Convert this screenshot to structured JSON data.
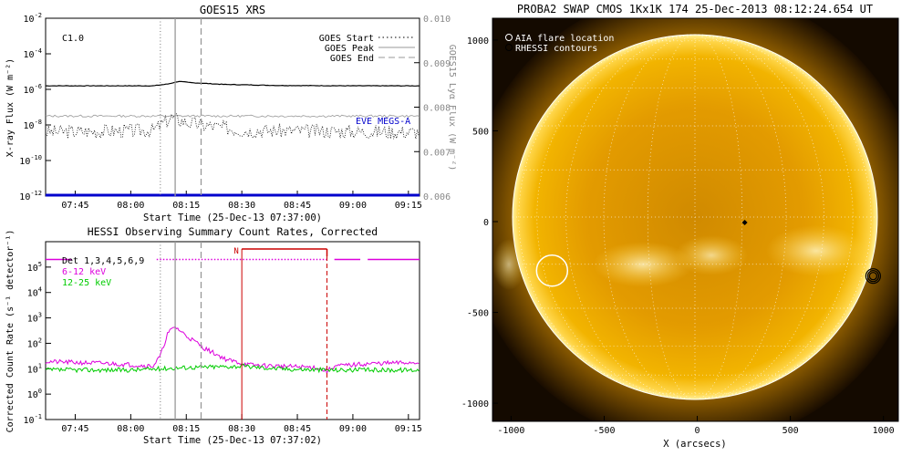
{
  "chart_data": [
    {
      "id": "goes",
      "type": "line",
      "title": "GOES15 XRS",
      "xlabel": "Start Time (25-Dec-13 07:37:00)",
      "ylabel": "X-ray Flux (W m⁻²)",
      "y2label": "GOES15 Lyα Flux (W m⁻²)",
      "x_ticks": [
        "07:45",
        "08:00",
        "08:15",
        "08:30",
        "08:45",
        "09:00",
        "09:15"
      ],
      "y_ticks_exp": [
        -2,
        -4,
        -6,
        -8,
        -10,
        -12
      ],
      "y2_ticks": [
        "0.010",
        "0.009",
        "0.008",
        "0.007",
        "0.006"
      ],
      "y_scale": "log",
      "ylim_exp": [
        -12,
        -2
      ],
      "xlim_min": [
        37,
        138
      ],
      "flare_class_label": "C1.0",
      "eve_label": "EVE MEGS-A",
      "legend": [
        {
          "label": "GOES Start",
          "style": "dotted"
        },
        {
          "label": "GOES Peak",
          "style": "solid"
        },
        {
          "label": "GOES End",
          "style": "dashed"
        }
      ],
      "event_times_min": {
        "start": 68,
        "peak": 72,
        "end": 79
      },
      "series": [
        {
          "name": "long",
          "color": "#000000",
          "base_exp": -5.8,
          "flare": [
            [
              37,
              -5.8
            ],
            [
              66,
              -5.8
            ],
            [
              70,
              -5.7
            ],
            [
              73,
              -5.55
            ],
            [
              76,
              -5.62
            ],
            [
              85,
              -5.72
            ],
            [
              100,
              -5.78
            ],
            [
              120,
              -5.8
            ],
            [
              138,
              -5.8
            ]
          ]
        },
        {
          "name": "short",
          "color": "#000000",
          "base_exp": -8.4,
          "flare": [
            [
              37,
              -8.4
            ],
            [
              66,
              -8.3
            ],
            [
              71,
              -7.6
            ],
            [
              76,
              -7.9
            ],
            [
              90,
              -8.3
            ],
            [
              138,
              -8.4
            ]
          ]
        },
        {
          "name": "lya",
          "color": "#999999",
          "base_exp": -7.5
        },
        {
          "name": "eve",
          "color": "#0000cc",
          "base_exp": -11.95
        }
      ]
    },
    {
      "id": "hessi",
      "type": "line",
      "title": "HESSI Observing Summary Count Rates, Corrected",
      "xlabel": "Start Time (25-Dec-13 07:37:02)",
      "ylabel": "Corrected Count Rate (s⁻¹ detector⁻¹)",
      "x_ticks": [
        "07:45",
        "08:00",
        "08:15",
        "08:30",
        "08:45",
        "09:00",
        "09:15"
      ],
      "y_ticks_exp": [
        5,
        4,
        3,
        2,
        1,
        0,
        -1
      ],
      "y_scale": "log",
      "ylim_exp": [
        -1,
        6
      ],
      "xlim_min": [
        37,
        138
      ],
      "legend": [
        {
          "label": "Det 1,3,4,5,6,9",
          "color": "#000000"
        },
        {
          "label": "6-12 keV",
          "color": "#dd00dd"
        },
        {
          "label": "12-25 keV",
          "color": "#00cc00"
        }
      ],
      "night_label": "N",
      "night_interval_min": [
        90,
        113
      ],
      "event_times_min": {
        "start": 68,
        "peak": 72,
        "end": 79
      },
      "series": [
        {
          "name": "6-12 keV",
          "color": "#dd00dd",
          "points": [
            [
              37,
              1.28
            ],
            [
              55,
              1.2
            ],
            [
              66,
              1.1
            ],
            [
              68,
              1.5
            ],
            [
              70,
              2.4
            ],
            [
              72,
              2.65
            ],
            [
              75,
              2.3
            ],
            [
              80,
              1.8
            ],
            [
              86,
              1.35
            ],
            [
              92,
              1.15
            ],
            [
              100,
              1.1
            ],
            [
              110,
              1.05
            ],
            [
              113,
              0.9
            ],
            [
              115,
              1.1
            ],
            [
              125,
              1.2
            ],
            [
              138,
              1.25
            ]
          ]
        },
        {
          "name": "12-25 keV",
          "color": "#00cc00",
          "points": [
            [
              37,
              0.95
            ],
            [
              60,
              0.95
            ],
            [
              68,
              1.0
            ],
            [
              75,
              1.05
            ],
            [
              90,
              1.1
            ],
            [
              100,
              1.0
            ],
            [
              113,
              0.95
            ],
            [
              125,
              0.95
            ],
            [
              138,
              0.95
            ]
          ]
        }
      ],
      "flag_segments_min": [
        [
          37,
          44
        ],
        [
          67,
          113
        ],
        [
          115,
          122
        ],
        [
          124,
          138
        ]
      ]
    },
    {
      "id": "swap",
      "type": "scatter",
      "title": "PROBA2 SWAP CMOS 1Kx1K 174 25-Dec-2013 08:12:24.654 UT",
      "xlabel": "X (arcsecs)",
      "x_ticks": [
        -1000,
        -500,
        0,
        500,
        1000
      ],
      "y_ticks": [
        1000,
        500,
        0,
        -500,
        -1000
      ],
      "xlim": [
        -1100,
        1080
      ],
      "ylim": [
        -1100,
        1120
      ],
      "legend": [
        {
          "label": "AIA flare location",
          "marker": "circle"
        },
        {
          "label": "RHESSI contours",
          "marker": "dark-circle"
        }
      ],
      "aia_flare_location_arcsec": [
        -780,
        -270
      ],
      "rhessi_contours_arcsec": [
        945,
        -300
      ],
      "point_arcsec": [
        255,
        -5
      ]
    }
  ]
}
